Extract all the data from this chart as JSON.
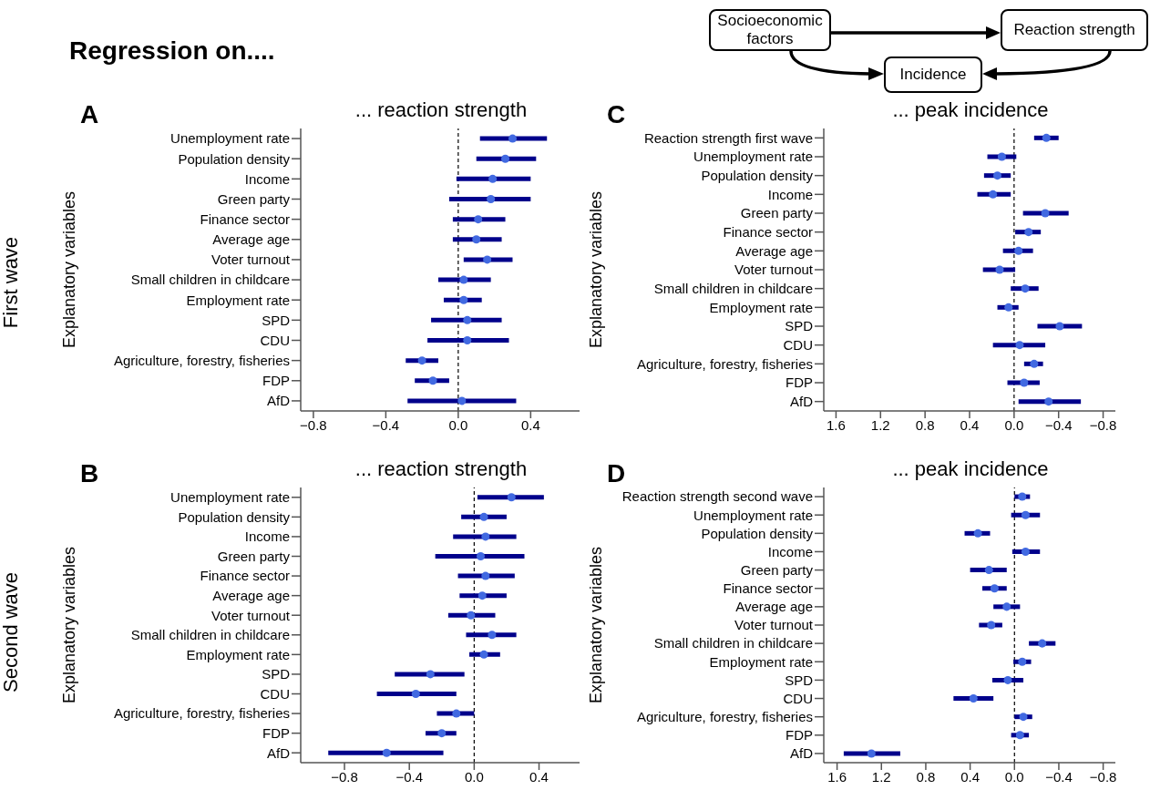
{
  "chart_data": [
    {
      "type": "other",
      "title": "Regression on....",
      "annotations": [
        "Socioeconomic factors",
        "Reaction strength",
        "Incidence"
      ]
    },
    {
      "type": "scatter",
      "orientation": "horizontal",
      "title": "... reaction strength",
      "ylabel": "Explanatory variables",
      "annotations": [
        "A",
        "First wave"
      ],
      "categories": [
        "Unemployment rate",
        "Population density",
        "Income",
        "Green party",
        "Finance sector",
        "Average age",
        "Voter turnout",
        "Small children in childcare",
        "Employment rate",
        "SPD",
        "CDU",
        "Agriculture, forestry, fisheries",
        "FDP",
        "AfD"
      ],
      "values": [
        0.3,
        0.26,
        0.19,
        0.18,
        0.11,
        0.1,
        0.16,
        0.03,
        0.03,
        0.05,
        0.05,
        -0.2,
        -0.14,
        0.02
      ],
      "errors": [
        [
          0.12,
          0.49
        ],
        [
          0.1,
          0.43
        ],
        [
          -0.01,
          0.4
        ],
        [
          -0.05,
          0.4
        ],
        [
          -0.03,
          0.26
        ],
        [
          -0.03,
          0.24
        ],
        [
          0.03,
          0.3
        ],
        [
          -0.11,
          0.18
        ],
        [
          -0.08,
          0.13
        ],
        [
          -0.15,
          0.24
        ],
        [
          -0.17,
          0.28
        ],
        [
          -0.29,
          -0.11
        ],
        [
          -0.24,
          -0.05
        ],
        [
          -0.28,
          0.32
        ]
      ],
      "color": "#4169e1",
      "marker": "circle",
      "xlim": [
        -0.87,
        0.67
      ],
      "xticks": [
        {
          "value": -0.8,
          "label": "−0.8"
        },
        {
          "value": -0.4,
          "label": "−0.4"
        },
        {
          "value": 0,
          "label": "0.0"
        },
        {
          "value": 0.4,
          "label": "0.4"
        }
      ],
      "ref_lines": [
        {
          "axis": "x",
          "value": 0,
          "color": "#000000",
          "line_style": "dashed"
        }
      ]
    },
    {
      "type": "scatter",
      "orientation": "horizontal",
      "title": "... peak incidence",
      "ylabel": "Explanatory variables",
      "annotations": [
        "C"
      ],
      "categories": [
        "Reaction strength first wave",
        "Unemployment rate",
        "Population density",
        "Income",
        "Green party",
        "Finance sector",
        "Average age",
        "Voter turnout",
        "Small children in childcare",
        "Employment rate",
        "SPD",
        "CDU",
        "Agriculture, forestry, fisheries",
        "FDP",
        "AfD"
      ],
      "values": [
        -0.29,
        0.11,
        0.15,
        0.19,
        -0.28,
        -0.13,
        -0.04,
        0.13,
        -0.1,
        0.05,
        -0.41,
        -0.05,
        -0.18,
        -0.09,
        -0.31
      ],
      "errors": [
        [
          -0.4,
          -0.18
        ],
        [
          -0.02,
          0.24
        ],
        [
          0.03,
          0.27
        ],
        [
          0.03,
          0.33
        ],
        [
          -0.49,
          -0.08
        ],
        [
          -0.24,
          -0.01
        ],
        [
          -0.17,
          0.1
        ],
        [
          -0.01,
          0.28
        ],
        [
          -0.22,
          0.03
        ],
        [
          -0.04,
          0.15
        ],
        [
          -0.61,
          -0.21
        ],
        [
          -0.28,
          0.19
        ],
        [
          -0.26,
          -0.09
        ],
        [
          -0.23,
          0.06
        ],
        [
          -0.6,
          -0.04
        ]
      ],
      "color": "#4169e1",
      "marker": "circle",
      "xlim": [
        1.71,
        -0.91
      ],
      "xticks": [
        {
          "value": 1.6,
          "label": "1.6"
        },
        {
          "value": 1.2,
          "label": "1.2"
        },
        {
          "value": 0.8,
          "label": "0.8"
        },
        {
          "value": 0.4,
          "label": "0.4"
        },
        {
          "value": 0,
          "label": "0.0"
        },
        {
          "value": -0.4,
          "label": "−0.4"
        },
        {
          "value": -0.8,
          "label": "−0.8"
        }
      ],
      "ref_lines": [
        {
          "axis": "x",
          "value": 0,
          "color": "#000000",
          "line_style": "dashed"
        }
      ]
    },
    {
      "type": "scatter",
      "orientation": "horizontal",
      "title": "... reaction strength",
      "ylabel": "Explanatory variables",
      "annotations": [
        "B",
        "Second wave"
      ],
      "categories": [
        "Unemployment rate",
        "Population density",
        "Income",
        "Green party",
        "Finance sector",
        "Average age",
        "Voter turnout",
        "Small children in childcare",
        "Employment rate",
        "SPD",
        "CDU",
        "Agriculture, forestry, fisheries",
        "FDP",
        "AfD"
      ],
      "values": [
        0.23,
        0.06,
        0.07,
        0.04,
        0.07,
        0.05,
        -0.02,
        0.11,
        0.06,
        -0.27,
        -0.36,
        -0.11,
        -0.2,
        -0.54
      ],
      "errors": [
        [
          0.02,
          0.43
        ],
        [
          -0.08,
          0.2
        ],
        [
          -0.13,
          0.26
        ],
        [
          -0.24,
          0.31
        ],
        [
          -0.1,
          0.25
        ],
        [
          -0.09,
          0.2
        ],
        [
          -0.16,
          0.13
        ],
        [
          -0.05,
          0.26
        ],
        [
          -0.03,
          0.16
        ],
        [
          -0.49,
          -0.06
        ],
        [
          -0.6,
          -0.11
        ],
        [
          -0.23,
          0.0
        ],
        [
          -0.3,
          -0.11
        ],
        [
          -0.9,
          -0.19
        ]
      ],
      "color": "#4169e1",
      "marker": "circle",
      "xlim": [
        -1.07,
        0.65
      ],
      "xticks": [
        {
          "value": -0.8,
          "label": "−0.8"
        },
        {
          "value": -0.4,
          "label": "−0.4"
        },
        {
          "value": 0,
          "label": "0.0"
        },
        {
          "value": 0.4,
          "label": "0.4"
        }
      ],
      "ref_lines": [
        {
          "axis": "x",
          "value": 0,
          "color": "#000000",
          "line_style": "dashed"
        }
      ]
    },
    {
      "type": "scatter",
      "orientation": "horizontal",
      "title": "... peak incidence",
      "ylabel": "Explanatory variables",
      "annotations": [
        "D"
      ],
      "categories": [
        "Reaction strength second wave",
        "Unemployment rate",
        "Population density",
        "Income",
        "Green party",
        "Finance sector",
        "Average age",
        "Voter turnout",
        "Small children in childcare",
        "Employment rate",
        "SPD",
        "CDU",
        "Agriculture, forestry, fisheries",
        "FDP",
        "AfD"
      ],
      "values": [
        -0.07,
        -0.1,
        0.33,
        -0.1,
        0.23,
        0.18,
        0.07,
        0.21,
        -0.25,
        -0.07,
        0.06,
        0.37,
        -0.08,
        -0.05,
        1.29
      ],
      "errors": [
        [
          -0.14,
          0.0
        ],
        [
          -0.23,
          0.03
        ],
        [
          0.22,
          0.45
        ],
        [
          -0.23,
          0.02
        ],
        [
          0.07,
          0.4
        ],
        [
          0.07,
          0.29
        ],
        [
          -0.05,
          0.19
        ],
        [
          0.11,
          0.32
        ],
        [
          -0.37,
          -0.13
        ],
        [
          -0.15,
          0.01
        ],
        [
          -0.08,
          0.2
        ],
        [
          0.19,
          0.55
        ],
        [
          -0.16,
          0.0
        ],
        [
          -0.13,
          0.03
        ],
        [
          1.03,
          1.54
        ]
      ],
      "color": "#4169e1",
      "marker": "circle",
      "xlim": [
        1.72,
        -0.91
      ],
      "xticks": [
        {
          "value": 1.6,
          "label": "1.6"
        },
        {
          "value": 1.2,
          "label": "1.2"
        },
        {
          "value": 0.8,
          "label": "0.8"
        },
        {
          "value": 0.4,
          "label": "0.4"
        },
        {
          "value": 0,
          "label": "0.0"
        },
        {
          "value": -0.4,
          "label": "−0.4"
        },
        {
          "value": -0.8,
          "label": "−0.8"
        }
      ],
      "ref_lines": [
        {
          "axis": "x",
          "value": 0,
          "color": "#000000",
          "line_style": "dashed"
        }
      ]
    }
  ]
}
